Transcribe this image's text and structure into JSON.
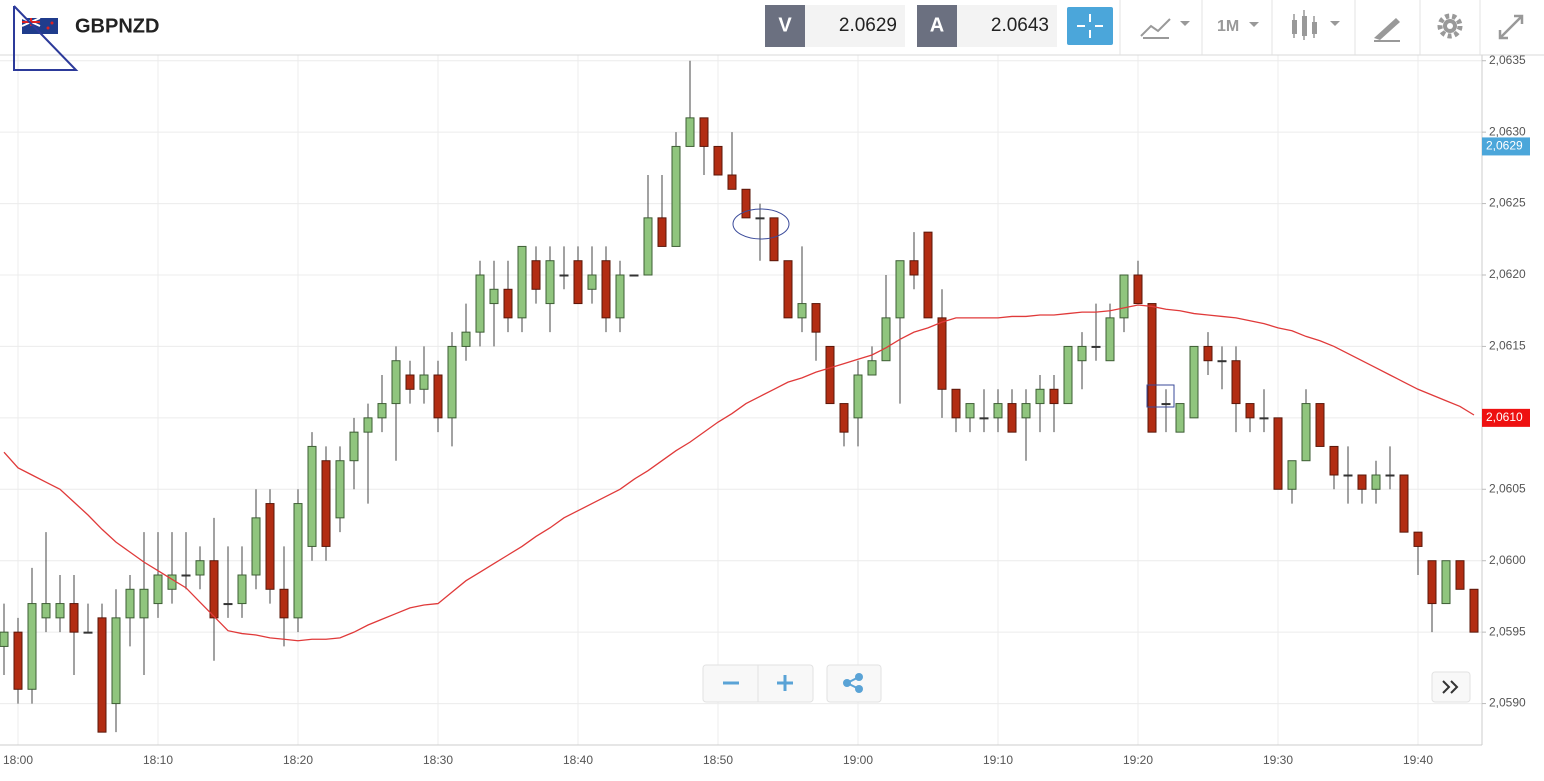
{
  "toolbar": {
    "symbol": "GBPNZD",
    "bid_label": "V",
    "bid": "2.0629",
    "ask_label": "A",
    "ask": "2.0643",
    "timeframe": "1M"
  },
  "chart_data": {
    "type": "candlestick",
    "categories": [
      null,
      "18:00",
      null,
      null,
      null,
      null,
      null,
      null,
      null,
      null,
      null,
      "18:10",
      null,
      null,
      null,
      null,
      null,
      null,
      null,
      null,
      null,
      "18:20",
      null,
      null,
      null,
      null,
      null,
      null,
      null,
      null,
      null,
      "18:30",
      null,
      null,
      null,
      null,
      null,
      null,
      null,
      null,
      null,
      "18:40",
      null,
      null,
      null,
      null,
      null,
      null,
      null,
      null,
      null,
      "18:50",
      null,
      null,
      null,
      null,
      null,
      null,
      null,
      null,
      null,
      "19:00",
      null,
      null,
      null,
      null,
      null,
      null,
      null,
      null,
      null,
      "19:10",
      null,
      null,
      null,
      null,
      null,
      null,
      null,
      null,
      null,
      "19:20",
      null,
      null,
      null,
      null,
      null,
      null,
      null,
      null,
      null,
      "19:30",
      null,
      null,
      null,
      null,
      null,
      null,
      null,
      null,
      null,
      "19:40",
      null,
      null,
      null,
      null
    ],
    "open": [
      2.0594,
      2.0595,
      2.0591,
      2.0596,
      2.0596,
      2.0597,
      2.0595,
      2.0596,
      2.059,
      2.0596,
      2.0596,
      2.0597,
      2.0598,
      2.0599,
      2.0599,
      2.06,
      2.0597,
      2.0597,
      2.0599,
      2.0604,
      2.0598,
      2.0596,
      2.0601,
      2.0607,
      2.0603,
      2.0607,
      2.0609,
      2.061,
      2.0611,
      2.0613,
      2.0612,
      2.0613,
      2.061,
      2.0615,
      2.0616,
      2.0618,
      2.0619,
      2.0617,
      2.0621,
      2.0618,
      2.062,
      2.0621,
      2.0619,
      2.0621,
      2.0617,
      2.062,
      2.062,
      2.0624,
      2.0622,
      2.0629,
      2.0631,
      2.0629,
      2.0627,
      2.0626,
      2.0624,
      2.0624,
      2.0621,
      2.0617,
      2.0618,
      2.0615,
      2.0611,
      2.061,
      2.0613,
      2.0614,
      2.0617,
      2.0621,
      2.0623,
      2.0617,
      2.0612,
      2.061,
      2.061,
      2.061,
      2.0611,
      2.061,
      2.0611,
      2.0612,
      2.0611,
      2.0614,
      2.0615,
      2.0614,
      2.0617,
      2.062,
      2.0618,
      2.0611,
      2.0609,
      2.061,
      2.0615,
      2.0614,
      2.0614,
      2.0611,
      2.061,
      2.061,
      2.0605,
      2.0607,
      2.0611,
      2.0608,
      2.0606,
      2.0606,
      2.0605,
      2.0606,
      2.0606,
      2.0602,
      2.06,
      2.0597,
      2.06,
      2.0598
    ],
    "high": [
      2.0597,
      2.0596,
      2.05995,
      2.0602,
      2.0599,
      2.0599,
      2.0597,
      2.0597,
      2.0598,
      2.0599,
      2.0602,
      2.0602,
      2.0602,
      2.0602,
      2.0601,
      2.0603,
      2.0601,
      2.0601,
      2.0605,
      2.0605,
      2.0601,
      2.0605,
      2.0609,
      2.0608,
      2.0608,
      2.061,
      2.0611,
      2.0613,
      2.0615,
      2.0614,
      2.0615,
      2.0614,
      2.0616,
      2.0618,
      2.0621,
      2.0621,
      2.0621,
      2.0622,
      2.0622,
      2.0622,
      2.0622,
      2.0622,
      2.0622,
      2.0622,
      2.0621,
      2.062,
      2.0627,
      2.0627,
      2.063,
      2.0635,
      2.0631,
      2.0629,
      2.063,
      2.0626,
      2.0625,
      2.0624,
      2.0621,
      2.0622,
      2.0618,
      2.0615,
      2.0611,
      2.0614,
      2.0615,
      2.062,
      2.0621,
      2.0623,
      2.0623,
      2.0619,
      2.0612,
      2.0611,
      2.0612,
      2.0612,
      2.0612,
      2.0612,
      2.0613,
      2.0613,
      2.0615,
      2.0616,
      2.0618,
      2.0618,
      2.062,
      2.0621,
      2.0618,
      2.0612,
      2.0611,
      2.0615,
      2.0616,
      2.0615,
      2.0615,
      2.0611,
      2.0612,
      2.061,
      2.0607,
      2.0612,
      2.0611,
      2.0608,
      2.0608,
      2.0606,
      2.0607,
      2.0608,
      2.0606,
      2.0602,
      2.06,
      2.06,
      2.06,
      2.0598
    ],
    "low": [
      2.0592,
      2.059,
      2.059,
      2.0595,
      2.0595,
      2.0592,
      2.0595,
      2.0588,
      2.0588,
      2.0594,
      2.0592,
      2.0596,
      2.0597,
      2.0598,
      2.0598,
      2.0593,
      2.0596,
      2.0596,
      2.0598,
      2.0597,
      2.0594,
      2.0595,
      2.06,
      2.06,
      2.0602,
      2.0605,
      2.0604,
      2.0609,
      2.0607,
      2.0611,
      2.0611,
      2.0609,
      2.0608,
      2.0614,
      2.0615,
      2.0615,
      2.0616,
      2.0616,
      2.0618,
      2.0616,
      2.0619,
      2.0618,
      2.0618,
      2.0616,
      2.0616,
      2.062,
      2.062,
      2.0622,
      2.0622,
      2.0629,
      2.0627,
      2.0627,
      2.0626,
      2.0624,
      2.0621,
      2.0621,
      2.0617,
      2.0616,
      2.0614,
      2.0611,
      2.0608,
      2.0608,
      2.0613,
      2.0614,
      2.0611,
      2.0619,
      2.0617,
      2.061,
      2.0609,
      2.0609,
      2.0609,
      2.0609,
      2.0609,
      2.0607,
      2.0609,
      2.0609,
      2.0611,
      2.0612,
      2.0614,
      2.0614,
      2.0616,
      2.0618,
      2.0609,
      2.0609,
      2.0609,
      2.061,
      2.0613,
      2.0612,
      2.0609,
      2.0609,
      2.0609,
      2.0605,
      2.0604,
      2.0607,
      2.0608,
      2.0605,
      2.0604,
      2.0604,
      2.0604,
      2.0605,
      2.0602,
      2.0599,
      2.0595,
      2.0597,
      2.0598,
      2.0595
    ],
    "close": [
      2.0595,
      2.0591,
      2.0597,
      2.0597,
      2.0597,
      2.0595,
      2.0595,
      2.0588,
      2.0596,
      2.0598,
      2.0598,
      2.0599,
      2.0599,
      2.0599,
      2.06,
      2.0596,
      2.0597,
      2.0599,
      2.0603,
      2.0598,
      2.0596,
      2.0604,
      2.0608,
      2.0601,
      2.0607,
      2.0609,
      2.061,
      2.0611,
      2.0614,
      2.0612,
      2.0613,
      2.061,
      2.0615,
      2.0616,
      2.062,
      2.0619,
      2.0617,
      2.0622,
      2.0619,
      2.0621,
      2.062,
      2.0618,
      2.062,
      2.0617,
      2.062,
      2.062,
      2.0624,
      2.0622,
      2.0629,
      2.0631,
      2.0629,
      2.0627,
      2.0626,
      2.0624,
      2.0624,
      2.0621,
      2.0617,
      2.0618,
      2.0616,
      2.0611,
      2.0609,
      2.0613,
      2.0614,
      2.0617,
      2.0621,
      2.062,
      2.0617,
      2.0612,
      2.061,
      2.0611,
      2.061,
      2.0611,
      2.0609,
      2.0611,
      2.0612,
      2.0611,
      2.0615,
      2.0615,
      2.0615,
      2.0617,
      2.062,
      2.0618,
      2.0609,
      2.0611,
      2.0611,
      2.0615,
      2.0614,
      2.0614,
      2.0611,
      2.061,
      2.061,
      2.0605,
      2.0607,
      2.0611,
      2.0608,
      2.0606,
      2.0606,
      2.0605,
      2.0606,
      2.0606,
      2.0602,
      2.0601,
      2.0597,
      2.06,
      2.0598,
      2.0595
    ],
    "up_color": "#90c57e",
    "down_color": "#b22d13",
    "moving_average": {
      "color": "#e03a3a",
      "values": [
        2.06076,
        2.06065,
        2.0606,
        2.06055,
        2.0605,
        2.06041,
        2.06032,
        2.06022,
        2.06013,
        2.06006,
        2.05999,
        2.05993,
        2.05987,
        2.05981,
        2.05971,
        2.05961,
        2.05951,
        2.05949,
        2.05948,
        2.05946,
        2.05945,
        2.05944,
        2.05945,
        2.05945,
        2.05946,
        2.0595,
        2.05955,
        2.05959,
        2.05963,
        2.05967,
        2.05969,
        2.0597,
        2.05978,
        2.05986,
        2.05992,
        2.05998,
        2.06004,
        2.0601,
        2.06017,
        2.06023,
        2.0603,
        2.06035,
        2.0604,
        2.06045,
        2.0605,
        2.06057,
        2.06063,
        2.0607,
        2.06077,
        2.06083,
        2.0609,
        2.06097,
        2.06103,
        2.0611,
        2.06115,
        2.0612,
        2.06125,
        2.06128,
        2.06132,
        2.06135,
        2.06138,
        2.06141,
        2.06144,
        2.06149,
        2.06155,
        2.0616,
        2.06163,
        2.06167,
        2.0617,
        2.0617,
        2.0617,
        2.0617,
        2.06171,
        2.06171,
        2.06172,
        2.06172,
        2.06173,
        2.06174,
        2.06174,
        2.06175,
        2.06177,
        2.06179,
        2.06178,
        2.06176,
        2.06175,
        2.06173,
        2.06172,
        2.06171,
        2.0617,
        2.06168,
        2.06166,
        2.06163,
        2.06161,
        2.06157,
        2.06154,
        2.0615,
        2.06145,
        2.0614,
        2.06135,
        2.0613,
        2.06125,
        2.0612,
        2.06116,
        2.06112,
        2.06108,
        2.06102
      ]
    },
    "ylim": [
      2.05871,
      2.06354
    ],
    "yticks": [
      {
        "value": 2.059,
        "label": "2,0590"
      },
      {
        "value": 2.0595,
        "label": "2,0595"
      },
      {
        "value": 2.06,
        "label": "2,0600"
      },
      {
        "value": 2.0605,
        "label": "2,0605"
      },
      {
        "value": 2.061,
        "label": "2,0610"
      },
      {
        "value": 2.0615,
        "label": "2,0615"
      },
      {
        "value": 2.062,
        "label": "2,0620"
      },
      {
        "value": 2.0625,
        "label": "2,0625"
      },
      {
        "value": 2.063,
        "label": "2,0630"
      },
      {
        "value": 2.0635,
        "label": "2,0635"
      }
    ],
    "price_markers": [
      {
        "value": 2.0629,
        "label": "2,0629",
        "color": "#4ba6da"
      },
      {
        "value": 2.061,
        "label": "2,0610",
        "color": "#ee1111"
      }
    ],
    "grid": true
  }
}
